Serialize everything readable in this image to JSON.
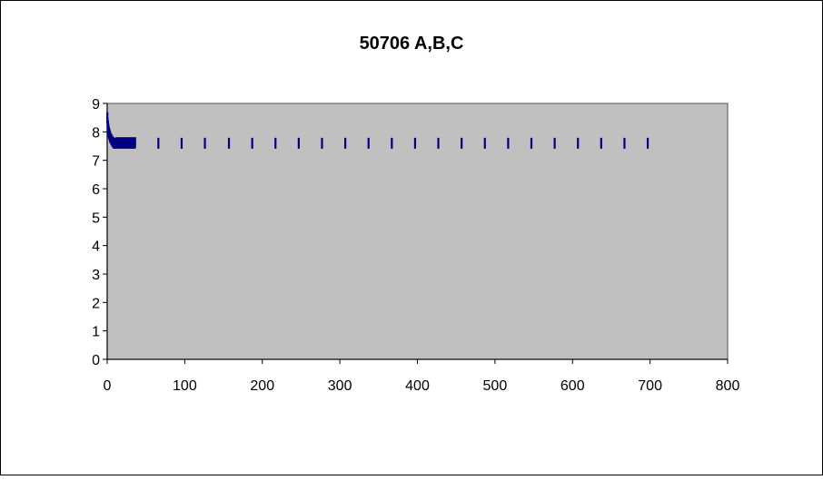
{
  "chart_data": {
    "type": "scatter",
    "title": "50706 A,B,C",
    "xlabel": "",
    "ylabel": "",
    "xlim": [
      0,
      800
    ],
    "ylim": [
      0,
      9
    ],
    "x_ticks": [
      0,
      100,
      200,
      300,
      400,
      500,
      600,
      700,
      800
    ],
    "y_ticks": [
      0,
      1,
      2,
      3,
      4,
      5,
      6,
      7,
      8,
      9
    ],
    "grid": false,
    "legend": "none",
    "plot_background": "#c0c0c0",
    "marker_color": "#000080",
    "marker": "dash",
    "series": [
      {
        "points": [
          [
            0.2,
            8.5
          ],
          [
            0.5,
            8.3
          ],
          [
            1,
            8.2
          ],
          [
            1.5,
            8.1
          ],
          [
            2,
            8.0
          ],
          [
            2.5,
            7.95
          ],
          [
            3,
            7.9
          ],
          [
            3.5,
            7.85
          ],
          [
            4,
            7.8
          ],
          [
            5,
            7.75
          ],
          [
            6,
            7.7
          ],
          [
            7,
            7.65
          ],
          [
            8,
            7.62
          ],
          [
            9,
            7.6
          ],
          [
            10,
            7.6
          ],
          [
            11,
            7.6
          ],
          [
            12,
            7.62
          ],
          [
            13,
            7.6
          ],
          [
            14,
            7.62
          ],
          [
            15,
            7.6
          ],
          [
            16,
            7.62
          ],
          [
            17,
            7.6
          ],
          [
            18,
            7.62
          ],
          [
            19,
            7.6
          ],
          [
            20,
            7.62
          ],
          [
            21,
            7.6
          ],
          [
            22,
            7.62
          ],
          [
            23,
            7.6
          ],
          [
            24,
            7.62
          ],
          [
            25,
            7.6
          ],
          [
            26,
            7.62
          ],
          [
            27,
            7.6
          ],
          [
            28,
            7.62
          ],
          [
            29,
            7.6
          ],
          [
            30,
            7.62
          ],
          [
            31,
            7.6
          ],
          [
            32,
            7.62
          ],
          [
            33,
            7.6
          ],
          [
            34,
            7.62
          ],
          [
            35,
            7.6
          ],
          [
            36,
            7.62
          ],
          [
            66,
            7.6
          ],
          [
            96,
            7.6
          ],
          [
            126,
            7.6
          ],
          [
            157,
            7.6
          ],
          [
            187,
            7.6
          ],
          [
            217,
            7.6
          ],
          [
            247,
            7.6
          ],
          [
            277,
            7.6
          ],
          [
            307,
            7.6
          ],
          [
            337,
            7.6
          ],
          [
            367,
            7.6
          ],
          [
            397,
            7.6
          ],
          [
            427,
            7.6
          ],
          [
            457,
            7.6
          ],
          [
            487,
            7.6
          ],
          [
            517,
            7.6
          ],
          [
            547,
            7.6
          ],
          [
            577,
            7.6
          ],
          [
            607,
            7.6
          ],
          [
            637,
            7.6
          ],
          [
            667,
            7.6
          ],
          [
            697,
            7.6
          ]
        ]
      }
    ]
  }
}
